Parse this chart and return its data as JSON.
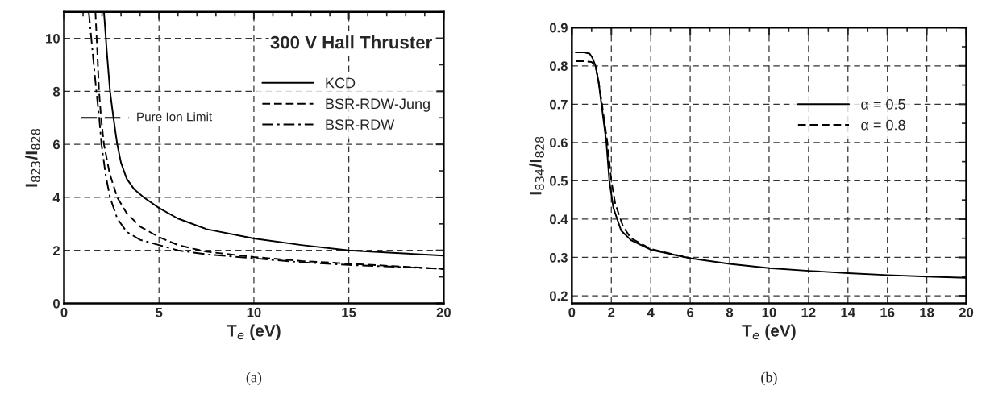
{
  "chart_data": [
    {
      "type": "line",
      "title": "300 V Hall Thruster",
      "xlabel": "T$_{e}$ (eV)",
      "ylabel": "I$_{823}$/I$_{828}$",
      "xlim": [
        0,
        20
      ],
      "xticks": [
        0,
        5,
        10,
        15,
        20
      ],
      "ylim": [
        0,
        11
      ],
      "yticks": [
        0,
        2,
        4,
        6,
        8,
        10
      ],
      "grid": true,
      "legend": "top right",
      "marker": "none",
      "series": [
        {
          "name": "KCD",
          "color": "#000000",
          "line_style": "solid",
          "x": [
            2.1,
            2.25,
            2.42,
            2.6,
            2.8,
            3.0,
            3.3,
            3.7,
            4.2,
            5,
            6,
            7.5,
            10,
            12.5,
            15,
            17.5,
            20
          ],
          "values": [
            11,
            9.5,
            8,
            7,
            6,
            5.3,
            4.7,
            4.3,
            4,
            3.6,
            3.2,
            2.8,
            2.45,
            2.2,
            2.0,
            1.9,
            1.8
          ]
        },
        {
          "name": "BSR-RDW-Jung",
          "color": "#000000",
          "line_style": "dashed",
          "x": [
            1.65,
            1.75,
            1.84,
            1.95,
            2.1,
            2.4,
            2.8,
            3.3,
            4,
            5,
            6,
            7.5,
            10,
            12.5,
            15,
            17.5,
            20
          ],
          "values": [
            11,
            9.5,
            8,
            7,
            6,
            4.9,
            4,
            3.4,
            2.9,
            2.5,
            2.2,
            1.95,
            1.75,
            1.6,
            1.5,
            1.4,
            1.3
          ]
        },
        {
          "name": "BSR-RDW",
          "color": "#000000",
          "line_style": "dashdot",
          "x": [
            1.3,
            1.5,
            1.7,
            1.85,
            1.97,
            2.2,
            2.42,
            2.8,
            3.3,
            4,
            5,
            6,
            7.5,
            10,
            12.5,
            15,
            17.5,
            20
          ],
          "values": [
            11,
            9.5,
            8,
            7,
            6,
            4.8,
            4,
            3.2,
            2.7,
            2.4,
            2.2,
            2.0,
            1.85,
            1.7,
            1.55,
            1.45,
            1.38,
            1.3
          ]
        },
        {
          "name": "Pure Ion Limit",
          "color": "#000000",
          "line_style": "longdash",
          "x": [
            0.9,
            3.4
          ],
          "values": [
            7,
            7
          ]
        }
      ],
      "annotations": [
        "(a)"
      ]
    },
    {
      "type": "line",
      "xlabel": "T$_{e}$ (eV)",
      "ylabel": "I$_{834}$/I$_{828}$",
      "xlim": [
        0,
        20
      ],
      "xticks": [
        0,
        2,
        4,
        6,
        8,
        10,
        12,
        14,
        16,
        18,
        20
      ],
      "ylim": [
        0.18,
        0.9
      ],
      "yticks": [
        0.2,
        0.3,
        0.4,
        0.5,
        0.6,
        0.7,
        0.8,
        0.9
      ],
      "grid": true,
      "legend": "right",
      "marker": "none",
      "series": [
        {
          "name": "α = 0.5",
          "color": "#000000",
          "line_style": "solid",
          "x": [
            0.2,
            0.6,
            0.9,
            1.05,
            1.2,
            1.35,
            1.5,
            1.75,
            1.9,
            2.1,
            2.5,
            3,
            4,
            6,
            8,
            10,
            12,
            14,
            16,
            18,
            20
          ],
          "values": [
            0.835,
            0.835,
            0.832,
            0.82,
            0.8,
            0.76,
            0.7,
            0.6,
            0.5,
            0.43,
            0.37,
            0.345,
            0.32,
            0.298,
            0.283,
            0.272,
            0.265,
            0.259,
            0.254,
            0.25,
            0.247
          ]
        },
        {
          "name": "α = 0.8",
          "color": "#000000",
          "line_style": "dashed",
          "x": [
            0.2,
            0.6,
            1.0,
            1.2,
            1.35,
            1.5,
            1.8,
            2.0,
            2.2,
            2.6,
            3,
            4,
            6
          ],
          "values": [
            0.812,
            0.812,
            0.81,
            0.8,
            0.76,
            0.71,
            0.6,
            0.5,
            0.44,
            0.38,
            0.35,
            0.322,
            0.298
          ]
        }
      ],
      "annotations": [
        "(b)"
      ]
    }
  ]
}
